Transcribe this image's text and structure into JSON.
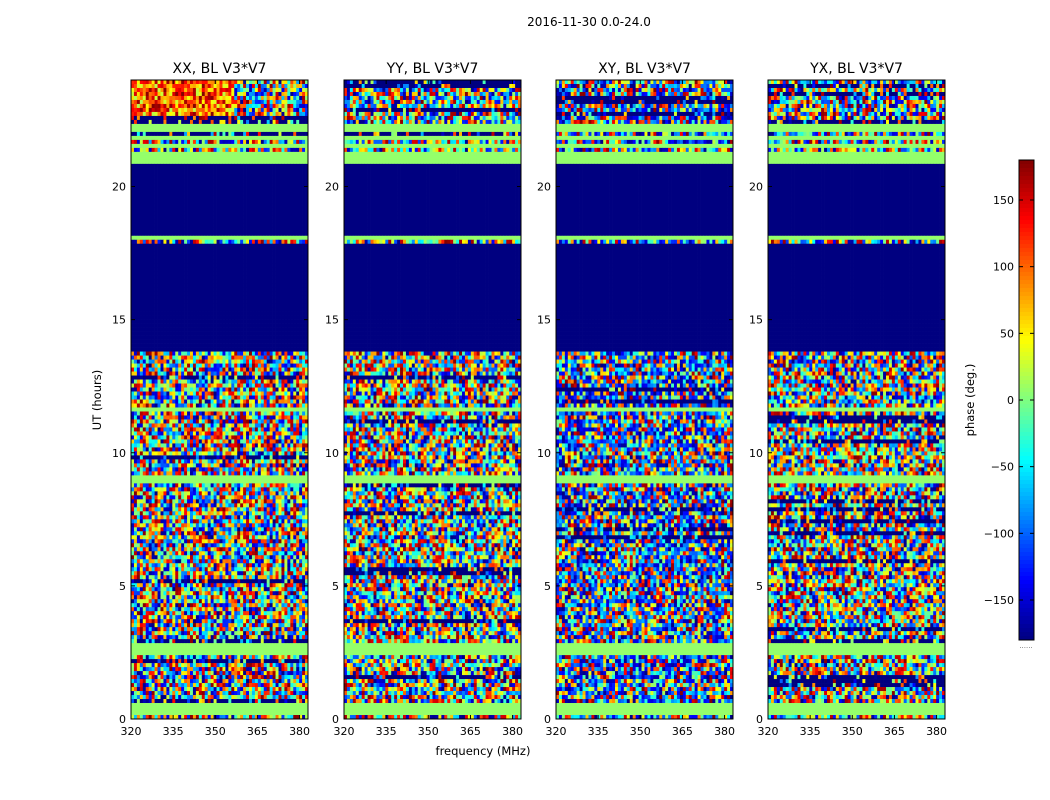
{
  "chart_data": {
    "type": "heatmap",
    "suptitle": "2016-11-30 0.0-24.0",
    "xlabel": "frequency (MHz)",
    "ylabel": "UT (hours)",
    "xlim": [
      320,
      383
    ],
    "ylim": [
      0,
      24
    ],
    "xticks": [
      "320",
      "335",
      "350",
      "365",
      "380"
    ],
    "yticks": [
      "0",
      "5",
      "10",
      "15",
      "20"
    ],
    "colormap": "jet",
    "panels": [
      {
        "title": "XX, BL V3*V7",
        "bias": "red"
      },
      {
        "title": "YY, BL V3*V7",
        "bias": "green"
      },
      {
        "title": "XY, BL V3*V7",
        "bias": "blue"
      },
      {
        "title": "YX, BL V3*V7",
        "bias": "green"
      }
    ],
    "flagged_value": -180,
    "flagged_ut_ranges": [
      [
        13.8,
        17.9
      ],
      [
        18.2,
        20.8
      ]
    ],
    "flat_bands_ut": [
      0.2,
      0.45,
      2.55,
      2.7,
      9.0,
      11.65,
      18.05,
      21.0,
      21.2,
      21.5,
      21.85,
      22.2
    ],
    "colorbar": {
      "label": "phase (deg.)",
      "range": [
        -180,
        180
      ],
      "ticks": [
        "150",
        "100",
        "50",
        "0",
        "−50",
        "−100",
        "−150"
      ],
      "tick_values": [
        150,
        100,
        50,
        0,
        -50,
        -100,
        -150
      ],
      "below_label": "......"
    }
  }
}
